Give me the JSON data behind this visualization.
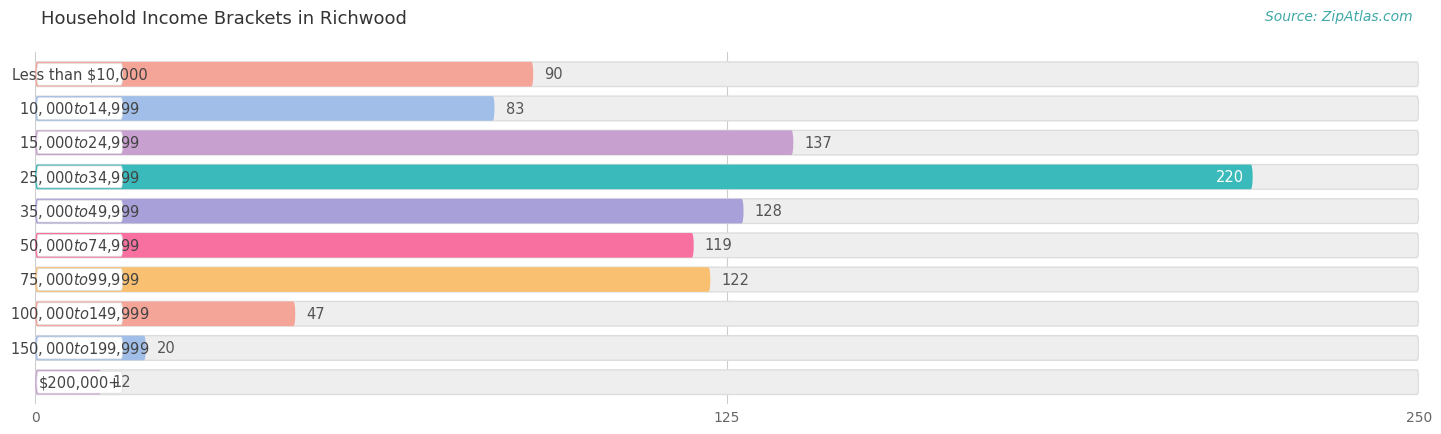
{
  "title": "Household Income Brackets in Richwood",
  "source": "Source: ZipAtlas.com",
  "categories": [
    "Less than $10,000",
    "$10,000 to $14,999",
    "$15,000 to $24,999",
    "$25,000 to $34,999",
    "$35,000 to $49,999",
    "$50,000 to $74,999",
    "$75,000 to $99,999",
    "$100,000 to $149,999",
    "$150,000 to $199,999",
    "$200,000+"
  ],
  "values": [
    90,
    83,
    137,
    220,
    128,
    119,
    122,
    47,
    20,
    12
  ],
  "bar_colors": [
    "#F5A598",
    "#A0BEE8",
    "#C8A0D0",
    "#3ABABA",
    "#A8A0D8",
    "#F870A0",
    "#F8C070",
    "#F5A598",
    "#A0BEE8",
    "#C8A0D0"
  ],
  "xlim": [
    0,
    250
  ],
  "xticks": [
    0,
    125,
    250
  ],
  "background_color": "#ffffff",
  "bar_background_color": "#eeeeee",
  "bar_border_color": "#dddddd",
  "label_bg_color": "#ffffff",
  "title_fontsize": 13,
  "label_fontsize": 10.5,
  "value_fontsize": 10.5,
  "source_fontsize": 10,
  "source_color": "#40A8A8",
  "title_color": "#333333",
  "label_color": "#444444",
  "value_color": "#555555",
  "value_color_220": "#ffffff"
}
